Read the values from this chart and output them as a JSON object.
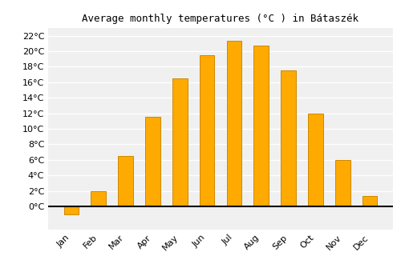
{
  "title": "Average monthly temperatures (°C ) in Bátaszék",
  "months": [
    "Jan",
    "Feb",
    "Mar",
    "Apr",
    "May",
    "Jun",
    "Jul",
    "Aug",
    "Sep",
    "Oct",
    "Nov",
    "Dec"
  ],
  "values": [
    -1.0,
    2.0,
    6.5,
    11.5,
    16.5,
    19.5,
    21.3,
    20.7,
    17.5,
    12.0,
    6.0,
    1.3
  ],
  "bar_color": "#FFAA00",
  "bar_edge_color": "#CC8800",
  "plot_bg_color": "#f0f0f0",
  "fig_bg_color": "#ffffff",
  "grid_color": "#ffffff",
  "ylim": [
    -3,
    23
  ],
  "yticks": [
    0,
    2,
    4,
    6,
    8,
    10,
    12,
    14,
    16,
    18,
    20,
    22
  ],
  "title_fontsize": 9,
  "tick_fontsize": 8,
  "bar_width": 0.55
}
